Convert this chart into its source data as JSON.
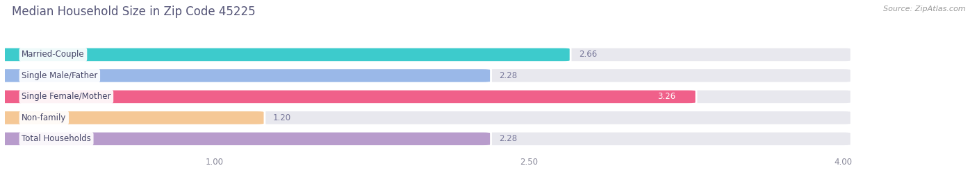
{
  "title": "Median Household Size in Zip Code 45225",
  "source": "Source: ZipAtlas.com",
  "categories": [
    "Married-Couple",
    "Single Male/Father",
    "Single Female/Mother",
    "Non-family",
    "Total Households"
  ],
  "values": [
    2.66,
    2.28,
    3.26,
    1.2,
    2.28
  ],
  "bar_colors": [
    "#3dcbcc",
    "#9ab8e8",
    "#f0608a",
    "#f5c896",
    "#b89ccc"
  ],
  "bar_bg_color": "#e8e8ee",
  "xlim_min": 0.0,
  "xlim_max": 4.5,
  "data_min": 0.0,
  "data_max": 4.0,
  "xticks": [
    1.0,
    2.5,
    4.0
  ],
  "label_fontsize": 8.5,
  "value_fontsize": 8.5,
  "title_fontsize": 12,
  "source_fontsize": 8,
  "title_color": "#555577",
  "label_color": "#444466",
  "value_color_inside": "#ffffff",
  "value_color_outside": "#777799",
  "background_color": "#ffffff",
  "bar_height": 0.62,
  "value_inside_threshold": 3.1,
  "bar_gap": 0.38
}
